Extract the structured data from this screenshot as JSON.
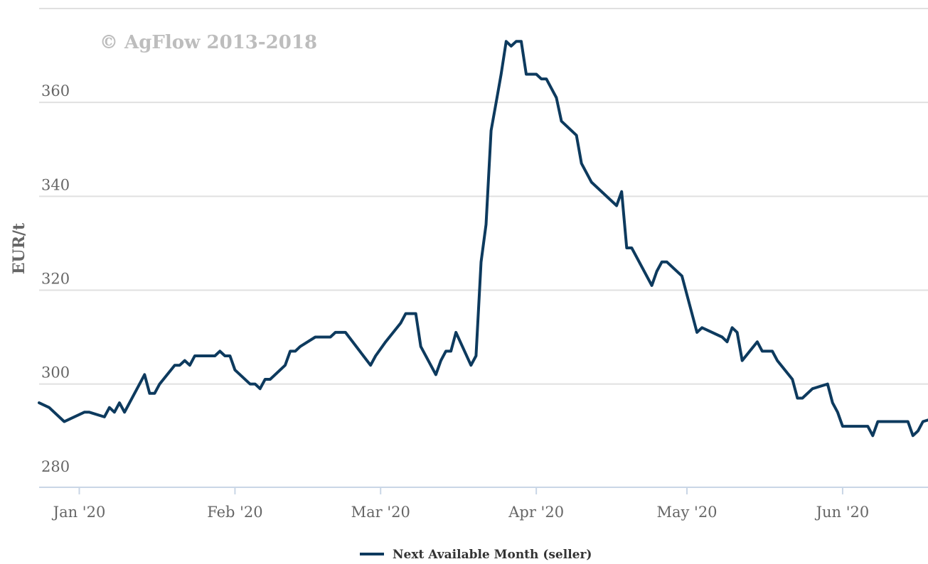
{
  "watermark": "© AgFlow 2013-2018",
  "chart_data": {
    "type": "line",
    "title": "",
    "xlabel": "",
    "ylabel": "EUR/t",
    "ylim": [
      278,
      380
    ],
    "yticks": [
      280,
      300,
      320,
      340,
      360
    ],
    "x_range": [
      "2019-12-24",
      "2020-06-18"
    ],
    "xticks": [
      {
        "date": "2020-01-01",
        "label": "Jan '20"
      },
      {
        "date": "2020-02-01",
        "label": "Feb '20"
      },
      {
        "date": "2020-03-01",
        "label": "Mar '20"
      },
      {
        "date": "2020-04-01",
        "label": "Apr '20"
      },
      {
        "date": "2020-05-01",
        "label": "May '20"
      },
      {
        "date": "2020-06-01",
        "label": "Jun '20"
      }
    ],
    "grid": true,
    "legend_position": "bottom-center",
    "series": [
      {
        "name": "Next Available Month (seller)",
        "color": "#0d3a5e",
        "points": [
          [
            "2019-12-24",
            296
          ],
          [
            "2019-12-26",
            295
          ],
          [
            "2019-12-29",
            292
          ],
          [
            "2020-01-02",
            294
          ],
          [
            "2020-01-03",
            294
          ],
          [
            "2020-01-06",
            293
          ],
          [
            "2020-01-07",
            295
          ],
          [
            "2020-01-08",
            294
          ],
          [
            "2020-01-09",
            296
          ],
          [
            "2020-01-10",
            294
          ],
          [
            "2020-01-14",
            302
          ],
          [
            "2020-01-15",
            298
          ],
          [
            "2020-01-16",
            298
          ],
          [
            "2020-01-17",
            300
          ],
          [
            "2020-01-20",
            304
          ],
          [
            "2020-01-21",
            304
          ],
          [
            "2020-01-22",
            305
          ],
          [
            "2020-01-23",
            304
          ],
          [
            "2020-01-24",
            306
          ],
          [
            "2020-01-27",
            306
          ],
          [
            "2020-01-28",
            306
          ],
          [
            "2020-01-29",
            307
          ],
          [
            "2020-01-30",
            306
          ],
          [
            "2020-01-31",
            306
          ],
          [
            "2020-02-01",
            303
          ],
          [
            "2020-02-04",
            300
          ],
          [
            "2020-02-05",
            300
          ],
          [
            "2020-02-06",
            299
          ],
          [
            "2020-02-07",
            301
          ],
          [
            "2020-02-08",
            301
          ],
          [
            "2020-02-11",
            304
          ],
          [
            "2020-02-12",
            307
          ],
          [
            "2020-02-13",
            307
          ],
          [
            "2020-02-14",
            308
          ],
          [
            "2020-02-17",
            310
          ],
          [
            "2020-02-19",
            310
          ],
          [
            "2020-02-20",
            310
          ],
          [
            "2020-02-21",
            311
          ],
          [
            "2020-02-23",
            311
          ],
          [
            "2020-02-28",
            304
          ],
          [
            "2020-02-29",
            306
          ],
          [
            "2020-03-02",
            309
          ],
          [
            "2020-03-05",
            313
          ],
          [
            "2020-03-06",
            315
          ],
          [
            "2020-03-08",
            315
          ],
          [
            "2020-03-09",
            308
          ],
          [
            "2020-03-12",
            302
          ],
          [
            "2020-03-13",
            305
          ],
          [
            "2020-03-14",
            307
          ],
          [
            "2020-03-15",
            307
          ],
          [
            "2020-03-16",
            311
          ],
          [
            "2020-03-19",
            304
          ],
          [
            "2020-03-20",
            306
          ],
          [
            "2020-03-21",
            326
          ],
          [
            "2020-03-22",
            334
          ],
          [
            "2020-03-23",
            354
          ],
          [
            "2020-03-24",
            360
          ],
          [
            "2020-03-25",
            366
          ],
          [
            "2020-03-26",
            373
          ],
          [
            "2020-03-27",
            372
          ],
          [
            "2020-03-28",
            373
          ],
          [
            "2020-03-29",
            373
          ],
          [
            "2020-03-30",
            366
          ],
          [
            "2020-04-01",
            366
          ],
          [
            "2020-04-02",
            365
          ],
          [
            "2020-04-03",
            365
          ],
          [
            "2020-04-05",
            361
          ],
          [
            "2020-04-06",
            356
          ],
          [
            "2020-04-09",
            353
          ],
          [
            "2020-04-10",
            347
          ],
          [
            "2020-04-12",
            343
          ],
          [
            "2020-04-17",
            338
          ],
          [
            "2020-04-18",
            341
          ],
          [
            "2020-04-19",
            329
          ],
          [
            "2020-04-20",
            329
          ],
          [
            "2020-04-24",
            321
          ],
          [
            "2020-04-25",
            324
          ],
          [
            "2020-04-26",
            326
          ],
          [
            "2020-04-27",
            326
          ],
          [
            "2020-04-30",
            323
          ],
          [
            "2020-05-03",
            311
          ],
          [
            "2020-05-04",
            312
          ],
          [
            "2020-05-08",
            310
          ],
          [
            "2020-05-09",
            309
          ],
          [
            "2020-05-10",
            312
          ],
          [
            "2020-05-11",
            311
          ],
          [
            "2020-05-12",
            305
          ],
          [
            "2020-05-15",
            309
          ],
          [
            "2020-05-16",
            307
          ],
          [
            "2020-05-18",
            307
          ],
          [
            "2020-05-19",
            305
          ],
          [
            "2020-05-22",
            301
          ],
          [
            "2020-05-23",
            297
          ],
          [
            "2020-05-24",
            297
          ],
          [
            "2020-05-26",
            299
          ],
          [
            "2020-05-29",
            300
          ],
          [
            "2020-05-30",
            296
          ],
          [
            "2020-05-31",
            294
          ],
          [
            "2020-06-01",
            291
          ],
          [
            "2020-06-06",
            291
          ],
          [
            "2020-06-07",
            289
          ],
          [
            "2020-06-08",
            292
          ],
          [
            "2020-06-14",
            292
          ],
          [
            "2020-06-15",
            289
          ],
          [
            "2020-06-16",
            290
          ],
          [
            "2020-06-17",
            292
          ],
          [
            "2020-06-20",
            293
          ],
          [
            "2020-06-21",
            292
          ]
        ]
      }
    ]
  }
}
